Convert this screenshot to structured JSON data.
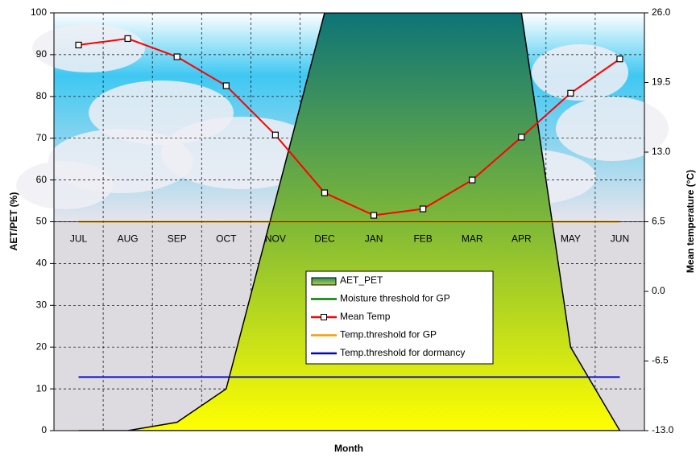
{
  "chart_data": {
    "type": "climate-diagram",
    "x_label": "Month",
    "y_label": "AET/PET (%)",
    "y2_label": "Mean temperature (°C)",
    "categories": [
      "JUL",
      "AUG",
      "SEP",
      "OCT",
      "NOV",
      "DEC",
      "JAN",
      "FEB",
      "MAR",
      "APR",
      "MAY",
      "JUN"
    ],
    "ylim": [
      0,
      100
    ],
    "yticks": [
      0,
      10,
      20,
      30,
      40,
      50,
      60,
      70,
      80,
      90,
      100
    ],
    "y2lim": [
      -13,
      26
    ],
    "y2ticks": [
      {
        "value": 26,
        "label": "26.0"
      },
      {
        "value": 19.5,
        "label": "19.5"
      },
      {
        "value": 13,
        "label": "13.0"
      },
      {
        "value": 6.5,
        "label": "6.5"
      },
      {
        "value": 0,
        "label": "0.0"
      },
      {
        "value": -6.5,
        "label": "-6.5"
      },
      {
        "value": -13,
        "label": "-13.0"
      }
    ],
    "grid": true,
    "series": [
      {
        "name": "AET_PET",
        "kind": "area",
        "color": "#4a9a4a",
        "values": [
          0,
          0,
          2,
          10,
          55,
          100,
          100,
          100,
          100,
          100,
          20,
          0
        ]
      },
      {
        "name": "Moisture threshold for GP",
        "kind": "hline",
        "color": "#008000",
        "value": 50
      },
      {
        "name": "Mean Temp",
        "kind": "line",
        "axis": "y2",
        "color": "#ff0000",
        "values": [
          23.0,
          23.6,
          21.9,
          19.2,
          14.6,
          9.2,
          7.1,
          7.7,
          10.4,
          14.4,
          18.5,
          21.7
        ]
      },
      {
        "name": "Temp.threshold for GP",
        "kind": "hline",
        "axis": "y2",
        "color": "#ff9900",
        "value": 6.5
      },
      {
        "name": "Temp.threshold for dormancy",
        "kind": "hline",
        "axis": "y2",
        "color": "#0000cc",
        "value": -8
      }
    ]
  }
}
